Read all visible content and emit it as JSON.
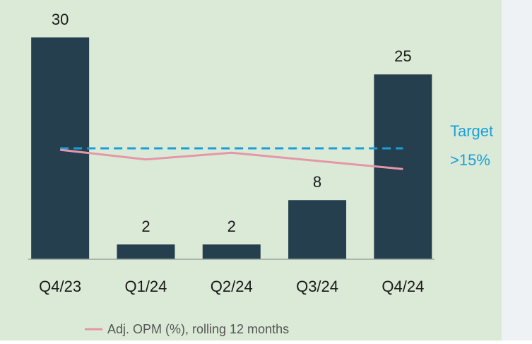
{
  "chart_data": {
    "type": "bar",
    "categories": [
      "Q4/23",
      "Q1/24",
      "Q2/24",
      "Q3/24",
      "Q4/24"
    ],
    "values": [
      30,
      2,
      2,
      8,
      25
    ],
    "color": "#253f4f",
    "ylim": [
      0,
      30
    ],
    "line": {
      "name": "Adj. OPM (%), rolling 12 months",
      "color": "#e597a8",
      "values": [
        14.8,
        13.5,
        14.4,
        13.3,
        12.2
      ]
    },
    "target": {
      "value": 15,
      "label": [
        "Target",
        ">15%"
      ],
      "color": "#1a9fd9"
    }
  }
}
